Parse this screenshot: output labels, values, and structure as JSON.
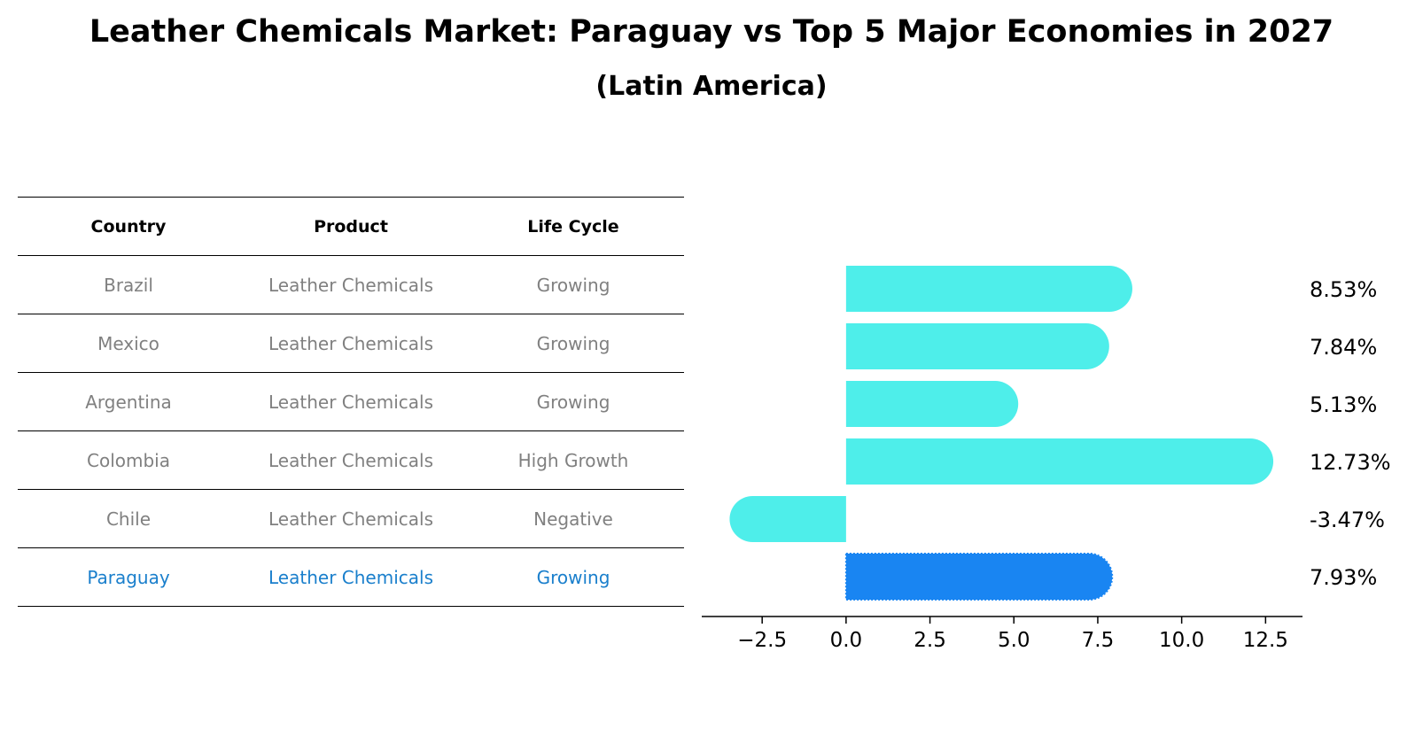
{
  "title": "Leather Chemicals Market: Paraguay vs Top 5 Major Economies in 2027",
  "subtitle": "(Latin America)",
  "table": {
    "headers": [
      "Country",
      "Product",
      "Life Cycle"
    ],
    "rows": [
      {
        "country": "Brazil",
        "product": "Leather Chemicals",
        "life_cycle": "Growing"
      },
      {
        "country": "Mexico",
        "product": "Leather Chemicals",
        "life_cycle": "Growing"
      },
      {
        "country": "Argentina",
        "product": "Leather Chemicals",
        "life_cycle": "Growing"
      },
      {
        "country": "Colombia",
        "product": "Leather Chemicals",
        "life_cycle": "High Growth"
      },
      {
        "country": "Chile",
        "product": "Leather Chemicals",
        "life_cycle": "Negative"
      },
      {
        "country": "Paraguay",
        "product": "Leather Chemicals",
        "life_cycle": "Growing"
      }
    ],
    "highlight_row": 5
  },
  "colors": {
    "bar": "#4eeeea",
    "highlight_bar": "#1985f2",
    "highlight_text": "#1a7fcc",
    "muted_text": "#808080"
  },
  "chart_data": {
    "type": "bar",
    "orientation": "horizontal",
    "categories": [
      "Brazil",
      "Mexico",
      "Argentina",
      "Colombia",
      "Chile",
      "Paraguay"
    ],
    "values": [
      8.53,
      7.84,
      5.13,
      12.73,
      -3.47,
      7.93
    ],
    "value_labels": [
      "8.53%",
      "7.84%",
      "5.13%",
      "12.73%",
      "-3.47%",
      "7.93%"
    ],
    "highlight_index": 5,
    "xlim": [
      -4.3,
      13.6
    ],
    "xticks": [
      -2.5,
      0.0,
      2.5,
      5.0,
      7.5,
      10.0,
      12.5
    ],
    "xtick_labels": [
      "−2.5",
      "0.0",
      "2.5",
      "5.0",
      "7.5",
      "10.0",
      "12.5"
    ],
    "xlabel": "",
    "ylabel": "",
    "grid": false
  }
}
